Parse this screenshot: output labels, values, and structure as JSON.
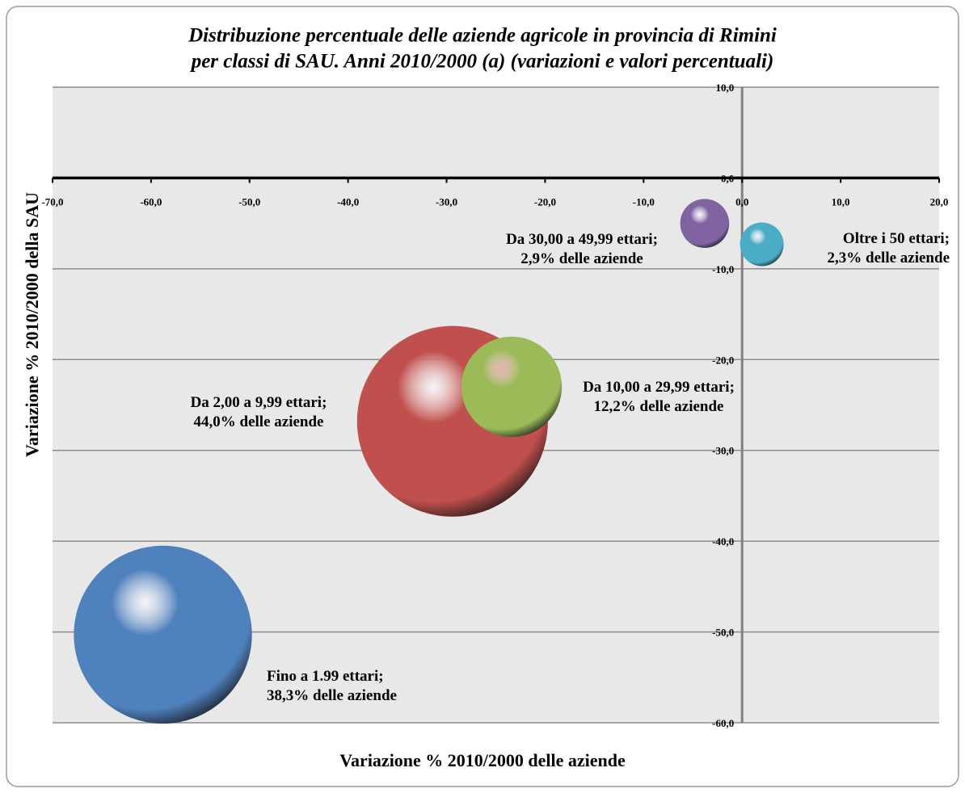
{
  "chart_data": {
    "type": "bubble",
    "title": [
      "Distribuzione percentuale delle aziende agricole in provincia di Rimini",
      "per classi di SAU. Anni 2010/2000 (a)  (variazioni e valori percentuali)"
    ],
    "xlabel": "Variazione % 2010/2000 delle aziende",
    "ylabel": "Variazione % 2010/2000 della SAU",
    "xlim": [
      -70,
      20
    ],
    "ylim": [
      -60,
      10
    ],
    "xticks": [
      {
        "value": -70,
        "label": "-70,0"
      },
      {
        "value": -60,
        "label": "-60,0"
      },
      {
        "value": -50,
        "label": "-50,0"
      },
      {
        "value": -40,
        "label": "-40,0"
      },
      {
        "value": -30,
        "label": "-30,0"
      },
      {
        "value": -20,
        "label": "-20,0"
      },
      {
        "value": -10,
        "label": "-10,0"
      },
      {
        "value": 0,
        "label": "0,0"
      },
      {
        "value": 10,
        "label": "10,0"
      },
      {
        "value": 20,
        "label": "20,0"
      }
    ],
    "yticks": [
      {
        "value": -60,
        "label": "-60,0"
      },
      {
        "value": -50,
        "label": "-50,0"
      },
      {
        "value": -40,
        "label": "-40,0"
      },
      {
        "value": -30,
        "label": "-30,0"
      },
      {
        "value": -20,
        "label": "-20,0"
      },
      {
        "value": -10,
        "label": "-10,0"
      },
      {
        "value": 0,
        "label": "0,0"
      },
      {
        "value": 10,
        "label": "10,0"
      }
    ],
    "grid": true,
    "series": [
      {
        "name": "Fino a 1.99 ettari;",
        "color": "#4f81bd",
        "x": [
          -58.8
        ],
        "values": [
          -50.3
        ],
        "sizes": [
          38.3
        ],
        "value_labels": [
          "38,3% delle aziende"
        ]
      },
      {
        "name": "Da 2,00 a 9,99 ettari;",
        "color": "#c0504d",
        "x": [
          -29.4
        ],
        "values": [
          -26.8
        ],
        "sizes": [
          44.0
        ],
        "value_labels": [
          "44,0% delle aziende"
        ]
      },
      {
        "name": "Da 10,00 a 29,99 ettari;",
        "color": "#9bbb59",
        "x": [
          -23.4
        ],
        "values": [
          -23.0
        ],
        "sizes": [
          12.2
        ],
        "value_labels": [
          "12,2% delle aziende"
        ]
      },
      {
        "name": "Da 30,00 a 49,99 ettari;",
        "color": "#8064a2",
        "x": [
          -3.8
        ],
        "values": [
          -5.0
        ],
        "sizes": [
          2.9
        ],
        "value_labels": [
          "2,9% delle aziende"
        ]
      },
      {
        "name": "Oltre i 50 ettari;",
        "color": "#4bacc6",
        "x": [
          2.0
        ],
        "values": [
          -7.3
        ],
        "sizes": [
          2.3
        ],
        "value_labels": [
          "2,3% delle aziende"
        ]
      }
    ]
  }
}
